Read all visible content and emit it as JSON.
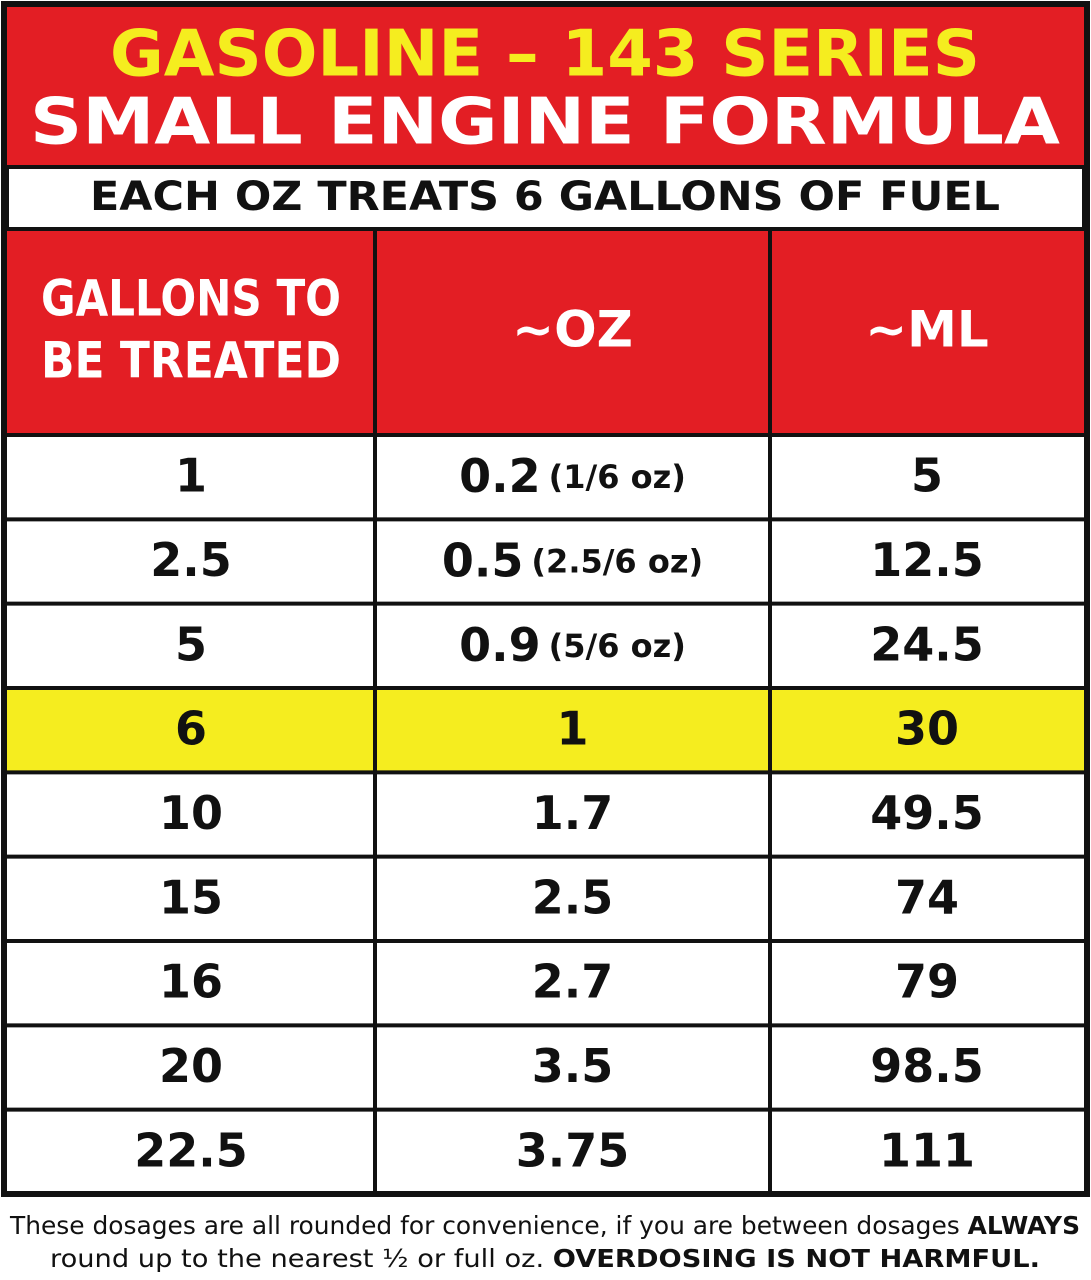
{
  "header": {
    "title_lines": [
      "GASOLINE – 143 SERIES",
      "SMALL ENGINE FORMULA"
    ],
    "subtitle": "EACH OZ TREATS 6 GALLONS OF FUEL"
  },
  "table": {
    "columns": [
      [
        "GALLONS TO",
        "BE TREATED"
      ],
      [
        "~OZ"
      ],
      [
        "~ML"
      ]
    ],
    "rows": [
      {
        "cells": [
          "1",
          "0.2",
          "5"
        ],
        "oz_note": "(1/6 oz)"
      },
      {
        "cells": [
          "2.5",
          "0.5",
          "12.5"
        ],
        "oz_note": "(2.5/6 oz)"
      },
      {
        "cells": [
          "5",
          "0.9",
          "24.5"
        ],
        "oz_note": "(5/6 oz)"
      },
      {
        "cells": [
          "6",
          "1",
          "30"
        ],
        "highlighted": true
      },
      {
        "cells": [
          "10",
          "1.7",
          "49.5"
        ]
      },
      {
        "cells": [
          "15",
          "2.5",
          "74"
        ]
      },
      {
        "cells": [
          "16",
          "2.7",
          "79"
        ]
      },
      {
        "cells": [
          "20",
          "3.5",
          "98.5"
        ]
      },
      {
        "cells": [
          "22.5",
          "3.75",
          "111"
        ]
      }
    ]
  },
  "footnote": {
    "lines": [
      [
        {
          "text": "These dosages are all rounded for convenience, if you are between dosages "
        },
        {
          "text": "ALWAYS",
          "bold": true
        }
      ],
      [
        {
          "text": "round up to the nearest ½ or full oz. "
        },
        {
          "text": "OVERDOSING IS NOT HARMFUL.",
          "bold": true
        }
      ]
    ]
  }
}
